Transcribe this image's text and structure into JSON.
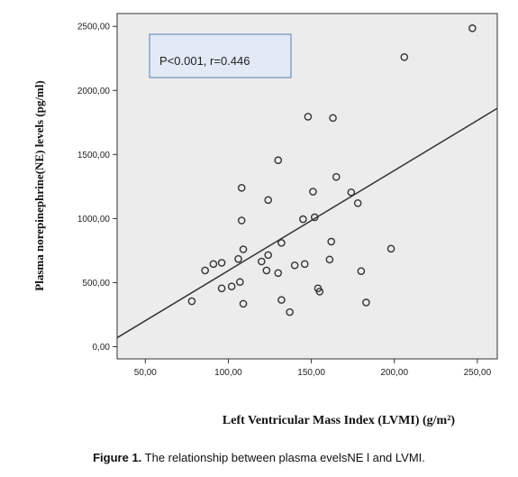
{
  "chart_data": {
    "type": "scatter",
    "xlabel": "Left Ventricular Mass Index (LVMI) (g/m²)",
    "ylabel": "Plasma norepinephrine(NE) levels (pg/ml)",
    "xlim": [
      33,
      262
    ],
    "ylim": [
      -95,
      2600
    ],
    "x_ticks": [
      "50,00",
      "100,00",
      "150,00",
      "200,00",
      "250,00"
    ],
    "x_tick_values": [
      50,
      100,
      150,
      200,
      250
    ],
    "y_ticks": [
      "0,00",
      "500,00",
      "1000,00",
      "1500,00",
      "2000,00",
      "2500,00"
    ],
    "y_tick_values": [
      0,
      500,
      1000,
      1500,
      2000,
      2500
    ],
    "grid": false,
    "annotation": "P<0.001, r=0.446",
    "fit_line": {
      "x": [
        33,
        262
      ],
      "y": [
        70,
        1860
      ]
    },
    "points": [
      {
        "x": 78,
        "y": 355
      },
      {
        "x": 86,
        "y": 595
      },
      {
        "x": 91,
        "y": 645
      },
      {
        "x": 96,
        "y": 655
      },
      {
        "x": 96,
        "y": 455
      },
      {
        "x": 102,
        "y": 470
      },
      {
        "x": 106,
        "y": 685
      },
      {
        "x": 107,
        "y": 505
      },
      {
        "x": 108,
        "y": 985
      },
      {
        "x": 108,
        "y": 1240
      },
      {
        "x": 109,
        "y": 760
      },
      {
        "x": 109,
        "y": 335
      },
      {
        "x": 120,
        "y": 665
      },
      {
        "x": 123,
        "y": 595
      },
      {
        "x": 124,
        "y": 715
      },
      {
        "x": 124,
        "y": 1145
      },
      {
        "x": 130,
        "y": 575
      },
      {
        "x": 130,
        "y": 1455
      },
      {
        "x": 132,
        "y": 810
      },
      {
        "x": 132,
        "y": 365
      },
      {
        "x": 137,
        "y": 270
      },
      {
        "x": 140,
        "y": 635
      },
      {
        "x": 145,
        "y": 995
      },
      {
        "x": 146,
        "y": 645
      },
      {
        "x": 148,
        "y": 1795
      },
      {
        "x": 151,
        "y": 1210
      },
      {
        "x": 152,
        "y": 1010
      },
      {
        "x": 154,
        "y": 455
      },
      {
        "x": 155,
        "y": 430
      },
      {
        "x": 161,
        "y": 680
      },
      {
        "x": 162,
        "y": 820
      },
      {
        "x": 163,
        "y": 1785
      },
      {
        "x": 165,
        "y": 1325
      },
      {
        "x": 174,
        "y": 1205
      },
      {
        "x": 178,
        "y": 1120
      },
      {
        "x": 180,
        "y": 590
      },
      {
        "x": 183,
        "y": 345
      },
      {
        "x": 198,
        "y": 765
      },
      {
        "x": 206,
        "y": 2260
      },
      {
        "x": 247,
        "y": 2485
      }
    ]
  },
  "caption": {
    "label": "Figure 1.",
    "text": " The relationship between plasma evelsNE l and LVMI."
  }
}
